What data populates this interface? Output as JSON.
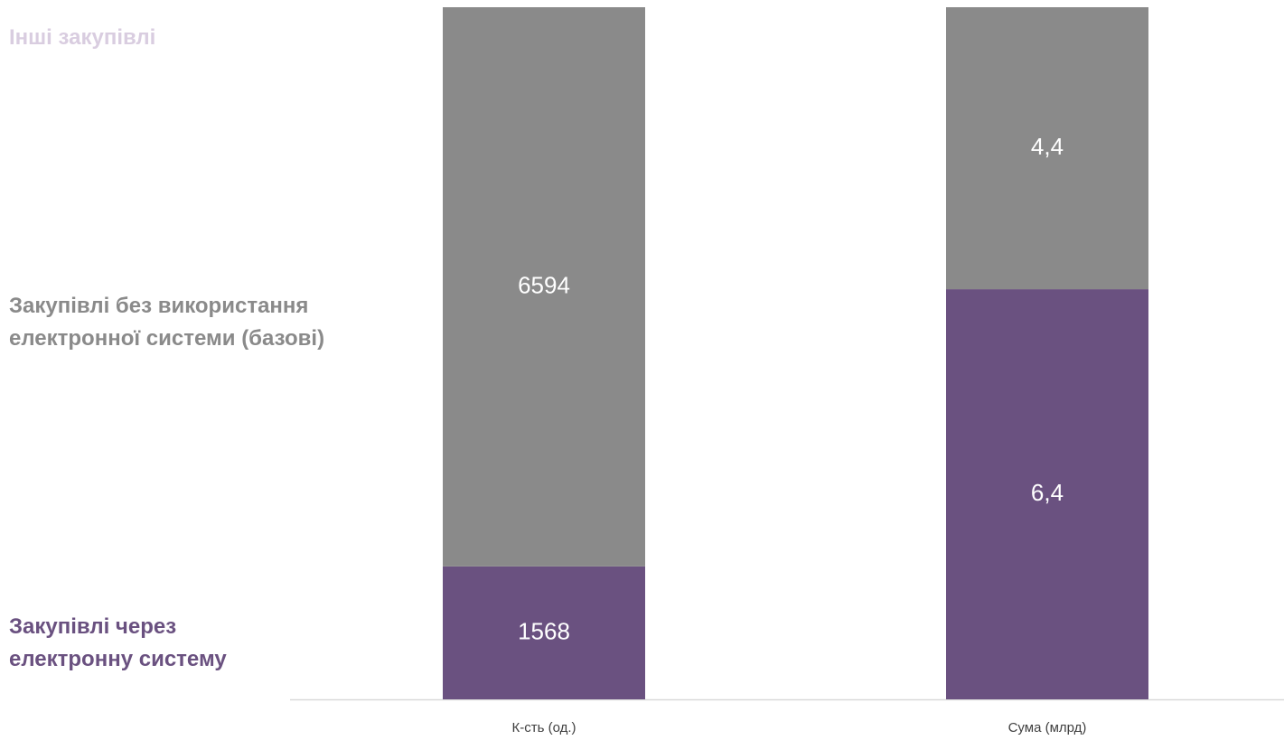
{
  "chart_data": {
    "type": "bar",
    "stacked": true,
    "normalized": true,
    "categories": [
      "К-сть (од.)",
      "Сума (млрд)"
    ],
    "series": [
      {
        "name": "Закупівлі через електронну систему",
        "color": "#6a5180",
        "values": [
          1568,
          6.4
        ],
        "labels": [
          "1568",
          "6,4"
        ]
      },
      {
        "name": "Закупівлі без використання електронної системи (базові)",
        "color": "#8a8a8a",
        "values": [
          6594,
          4.4
        ],
        "labels": [
          "6594",
          "4,4"
        ]
      },
      {
        "name": "Інші закупівлі",
        "color": "#d9cde0",
        "values": [
          0,
          0
        ],
        "labels": [
          "",
          ""
        ]
      }
    ],
    "legend_placement": "left",
    "grid": false
  }
}
